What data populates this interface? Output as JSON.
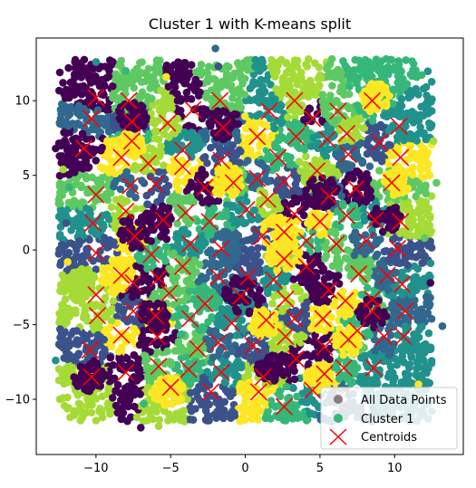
{
  "chart_data": {
    "type": "scatter",
    "title": "Cluster 1 with K-means split",
    "xlabel": "",
    "ylabel": "",
    "xlim": [
      -14,
      14.6
    ],
    "ylim": [
      -13.7,
      14.2
    ],
    "x_ticks": [
      -10,
      -5,
      0,
      5,
      10
    ],
    "y_ticks": [
      -10,
      -5,
      0,
      5,
      10
    ],
    "grid": false,
    "legend_placement": "lower-right",
    "palette": [
      "#440154",
      "#3b528b",
      "#21918c",
      "#5ec962",
      "#fde725",
      "#a5db36",
      "#31688e",
      "#35b779"
    ],
    "background_color": "#808080",
    "cluster1_color": "#35b779",
    "centroid_color": "#ff0000",
    "cloud_extent": {
      "x": [
        -12.5,
        12.5
      ],
      "y": [
        -11.5,
        12.8
      ]
    },
    "series": [
      {
        "name": "All Data Points",
        "marker": "circle",
        "color": "#808080"
      },
      {
        "name": "Cluster 1",
        "marker": "circle",
        "color": "#35b779"
      },
      {
        "name": "Centroids",
        "marker": "x",
        "color": "#ff0000"
      }
    ],
    "centroids": [
      [
        -10,
        10.2
      ],
      [
        -7.8,
        10
      ],
      [
        -10.3,
        8.8
      ],
      [
        -7.6,
        8.6
      ],
      [
        -5.2,
        8.5
      ],
      [
        -3.5,
        9.4
      ],
      [
        -1.7,
        10
      ],
      [
        -1.5,
        8.2
      ],
      [
        1.6,
        9.3
      ],
      [
        3.3,
        10
      ],
      [
        4.5,
        8.8
      ],
      [
        6.2,
        9.3
      ],
      [
        8.5,
        10
      ],
      [
        10.3,
        8.3
      ],
      [
        6.8,
        7.8
      ],
      [
        -10.8,
        6.8
      ],
      [
        -8.3,
        6.2
      ],
      [
        -7.6,
        7.3
      ],
      [
        -4.2,
        6.7
      ],
      [
        -6.5,
        5.8
      ],
      [
        -1.6,
        6
      ],
      [
        0.8,
        7.6
      ],
      [
        3.4,
        7.6
      ],
      [
        5.5,
        7.4
      ],
      [
        6.9,
        6.4
      ],
      [
        9,
        7.2
      ],
      [
        10.4,
        6.2
      ],
      [
        2.2,
        6.2
      ],
      [
        -10,
        3.7
      ],
      [
        -7.7,
        4.3
      ],
      [
        -6,
        4.4
      ],
      [
        -4.2,
        5.6
      ],
      [
        -2.7,
        4.2
      ],
      [
        -0.8,
        4.5
      ],
      [
        0.8,
        4.8
      ],
      [
        2.6,
        4.6
      ],
      [
        4.8,
        5.3
      ],
      [
        7.4,
        4.1
      ],
      [
        9.8,
        4.5
      ],
      [
        5.6,
        3.6
      ],
      [
        -10.2,
        1.8
      ],
      [
        -8,
        2.6
      ],
      [
        -5.5,
        2
      ],
      [
        -4,
        2.5
      ],
      [
        -2.4,
        1.9
      ],
      [
        0.1,
        2.7
      ],
      [
        1.5,
        3.4
      ],
      [
        3.3,
        2.4
      ],
      [
        5,
        1.9
      ],
      [
        6.8,
        2.3
      ],
      [
        8.7,
        2
      ],
      [
        10.4,
        1.9
      ],
      [
        -10,
        -0.2
      ],
      [
        -7.4,
        0.9
      ],
      [
        -6.3,
        -0.3
      ],
      [
        -3.7,
        0.4
      ],
      [
        -1.6,
        0.1
      ],
      [
        1.1,
        0.9
      ],
      [
        2.6,
        1.2
      ],
      [
        4.1,
        0.6
      ],
      [
        6.1,
        0.4
      ],
      [
        8.1,
        0.6
      ],
      [
        10.2,
        0.1
      ],
      [
        -8.3,
        -1.7
      ],
      [
        -5.8,
        -1.9
      ],
      [
        -4.2,
        -1.1
      ],
      [
        -1.8,
        -1.8
      ],
      [
        0.2,
        -1.8
      ],
      [
        2.6,
        -0.6
      ],
      [
        4.1,
        -1.1
      ],
      [
        7.6,
        -1.6
      ],
      [
        9.5,
        -1.7
      ],
      [
        1.9,
        -2
      ],
      [
        -10,
        -3
      ],
      [
        -7.5,
        -2.2
      ],
      [
        -5.1,
        -2.9
      ],
      [
        -2.7,
        -3.6
      ],
      [
        -0.3,
        -3.1
      ],
      [
        2.7,
        -3.3
      ],
      [
        5.6,
        -2.7
      ],
      [
        6.7,
        -3.4
      ],
      [
        8.5,
        -3.3
      ],
      [
        10.5,
        -2.3
      ],
      [
        -9.9,
        -4.4
      ],
      [
        -7.5,
        -4.1
      ],
      [
        -6,
        -4.4
      ],
      [
        -3.7,
        -4.6
      ],
      [
        -0.9,
        -4.9
      ],
      [
        1.4,
        -4.7
      ],
      [
        3.3,
        -4.6
      ],
      [
        5.2,
        -4.6
      ],
      [
        7.5,
        -5.4
      ],
      [
        8.5,
        -4.1
      ],
      [
        10.7,
        -4.1
      ],
      [
        -10.4,
        -6.7
      ],
      [
        -8.3,
        -5.7
      ],
      [
        -5.9,
        -5.8
      ],
      [
        -3.2,
        -6.6
      ],
      [
        -1.8,
        -6.2
      ],
      [
        0.5,
        -6.4
      ],
      [
        2.7,
        -5.8
      ],
      [
        5.3,
        -6.5
      ],
      [
        6.9,
        -6
      ],
      [
        9.3,
        -5.8
      ],
      [
        10.6,
        -5.8
      ],
      [
        -10.3,
        -8.5
      ],
      [
        -8,
        -8.2
      ],
      [
        -5.8,
        -7.8
      ],
      [
        -3.8,
        -8
      ],
      [
        -1.6,
        -8.2
      ],
      [
        1.2,
        -8.5
      ],
      [
        3.4,
        -7.3
      ],
      [
        5.3,
        -8.3
      ],
      [
        6.6,
        -7.9
      ],
      [
        8.6,
        -7.9
      ],
      [
        -5,
        -9.2
      ],
      [
        -2.3,
        -9.5
      ],
      [
        0.9,
        -9.5
      ],
      [
        2.6,
        -10.5
      ],
      [
        4.5,
        -9.4
      ],
      [
        6.2,
        -9.9
      ]
    ],
    "highlight_blobs": [
      {
        "x": -7.6,
        "y": 7.2,
        "r": 0.9,
        "color": "#fde725"
      },
      {
        "x": 8.7,
        "y": 10.2,
        "r": 1.0,
        "color": "#fde725"
      },
      {
        "x": -1.2,
        "y": 4.6,
        "r": 1.1,
        "color": "#fde725"
      },
      {
        "x": 2.4,
        "y": 1.2,
        "r": 1.3,
        "color": "#fde725"
      },
      {
        "x": 2.6,
        "y": -0.5,
        "r": 1.1,
        "color": "#fde725"
      },
      {
        "x": -8.5,
        "y": -1.8,
        "r": 1.2,
        "color": "#fde725"
      },
      {
        "x": 1.3,
        "y": -4.9,
        "r": 1.0,
        "color": "#fde725"
      },
      {
        "x": 6.8,
        "y": -6.1,
        "r": 1.0,
        "color": "#fde725"
      },
      {
        "x": -5.2,
        "y": -9.4,
        "r": 1.1,
        "color": "#fde725"
      },
      {
        "x": 4.9,
        "y": -8.6,
        "r": 0.9,
        "color": "#fde725"
      },
      {
        "x": 10.1,
        "y": 4.5,
        "r": 0.9,
        "color": "#fde725"
      },
      {
        "x": -10.9,
        "y": -2.1,
        "r": 0.9,
        "color": "#a5db36"
      },
      {
        "x": 5.1,
        "y": 3.9,
        "r": 1.1,
        "color": "#440154"
      },
      {
        "x": -7.3,
        "y": 1.2,
        "r": 1.2,
        "color": "#440154"
      },
      {
        "x": -0.1,
        "y": -3.0,
        "r": 1.3,
        "color": "#440154"
      },
      {
        "x": 1.8,
        "y": -7.8,
        "r": 1.0,
        "color": "#440154"
      },
      {
        "x": -10.4,
        "y": -8.5,
        "r": 1.1,
        "color": "#440154"
      },
      {
        "x": 8.5,
        "y": -4.2,
        "r": 1.0,
        "color": "#440154"
      },
      {
        "x": 9.4,
        "y": 2.2,
        "r": 1.0,
        "color": "#440154"
      },
      {
        "x": -6.2,
        "y": -4.4,
        "r": 1.0,
        "color": "#440154"
      },
      {
        "x": -7.6,
        "y": 8.9,
        "r": 1.0,
        "color": "#440154"
      },
      {
        "x": -1.5,
        "y": 8.5,
        "r": 1.1,
        "color": "#440154"
      }
    ],
    "outliers": [
      [
        -12.7,
        6.8
      ],
      [
        -12.2,
        5.4
      ],
      [
        -12.7,
        -7.4
      ],
      [
        -11.8,
        4.2
      ],
      [
        -11.9,
        -0.8
      ],
      [
        -12.0,
        1.8
      ],
      [
        13.2,
        -5.1
      ],
      [
        12.8,
        4.5
      ],
      [
        12.4,
        -2.2
      ],
      [
        12.6,
        7.3
      ],
      [
        -10.0,
        12.6
      ],
      [
        -8.0,
        12.0
      ],
      [
        -5.3,
        11.6
      ],
      [
        -1.8,
        12.3
      ],
      [
        -2.0,
        13.5
      ],
      [
        12.0,
        0.8
      ],
      [
        -7.0,
        -11.9
      ],
      [
        -5.8,
        -11.8
      ],
      [
        7.5,
        -11.2
      ],
      [
        -6.8,
        -10.3
      ],
      [
        11.6,
        -9.0
      ],
      [
        -12.4,
        -5.3
      ]
    ],
    "legend": [
      "All Data Points",
      "Cluster 1",
      "Centroids"
    ]
  }
}
